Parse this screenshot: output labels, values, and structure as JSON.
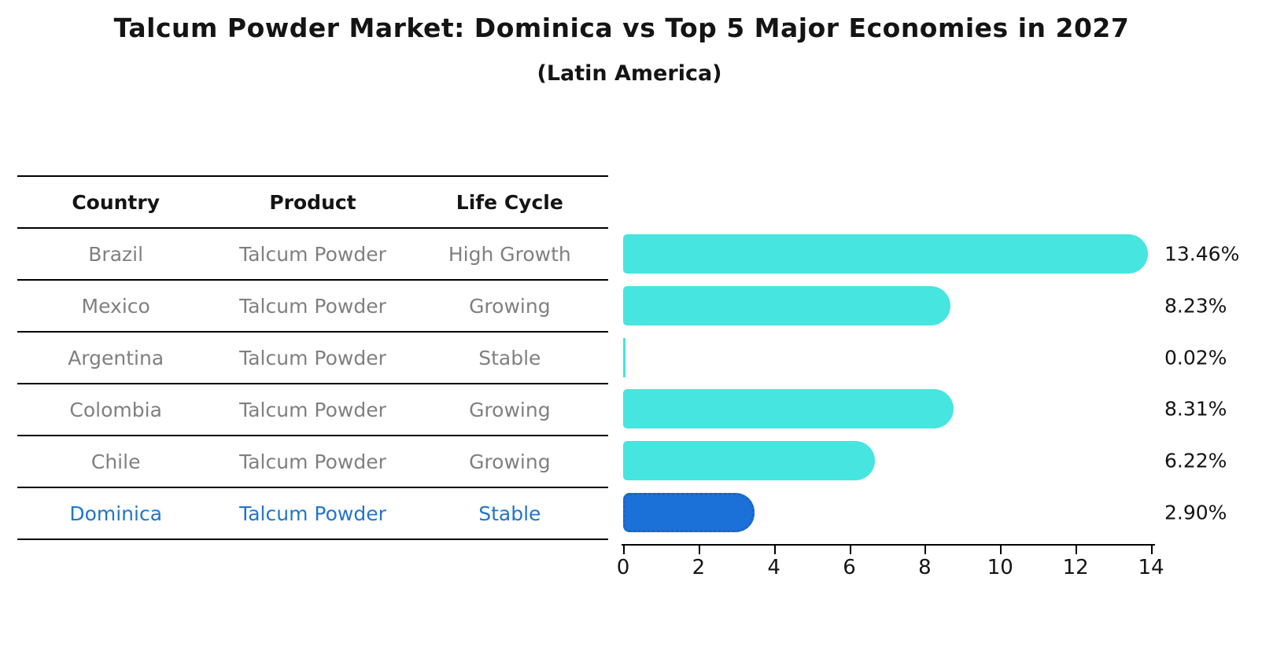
{
  "title": "Talcum Powder Market: Dominica vs Top 5 Major Economies in 2027",
  "subtitle": "(Latin America)",
  "colors": {
    "bar_default": "#46e5e0",
    "bar_highlight": "#1c71d8",
    "bar_highlight_edge": "#1a63c4",
    "highlight_text": "#2176cc",
    "row_text": "#808080"
  },
  "table": {
    "headers": [
      "Country",
      "Product",
      "Life Cycle"
    ],
    "rows": [
      {
        "country": "Brazil",
        "product": "Talcum Powder",
        "life_cycle": "High Growth",
        "highlight": false
      },
      {
        "country": "Mexico",
        "product": "Talcum Powder",
        "life_cycle": "Growing",
        "highlight": false
      },
      {
        "country": "Argentina",
        "product": "Talcum Powder",
        "life_cycle": "Stable",
        "highlight": false
      },
      {
        "country": "Colombia",
        "product": "Talcum Powder",
        "life_cycle": "Growing",
        "highlight": false
      },
      {
        "country": "Chile",
        "product": "Talcum Powder",
        "life_cycle": "Growing",
        "highlight": false
      },
      {
        "country": "Dominica",
        "product": "Talcum Powder",
        "life_cycle": "Stable",
        "highlight": true
      }
    ]
  },
  "chart_data": {
    "type": "bar",
    "orientation": "horizontal",
    "title": "Talcum Powder Market: Dominica vs Top 5 Major Economies in 2027",
    "subtitle": "(Latin America)",
    "categories": [
      "Brazil",
      "Mexico",
      "Argentina",
      "Colombia",
      "Chile",
      "Dominica"
    ],
    "values": [
      13.46,
      8.23,
      0.02,
      8.31,
      6.22,
      2.9
    ],
    "labels": [
      "13.46%",
      "8.23%",
      "0.02%",
      "8.31%",
      "6.22%",
      "2.90%"
    ],
    "xlim": [
      0,
      14
    ],
    "xticks": [
      0,
      2,
      4,
      6,
      8,
      10,
      12,
      14
    ],
    "highlight_index": 5,
    "grid": false,
    "legend": false
  }
}
